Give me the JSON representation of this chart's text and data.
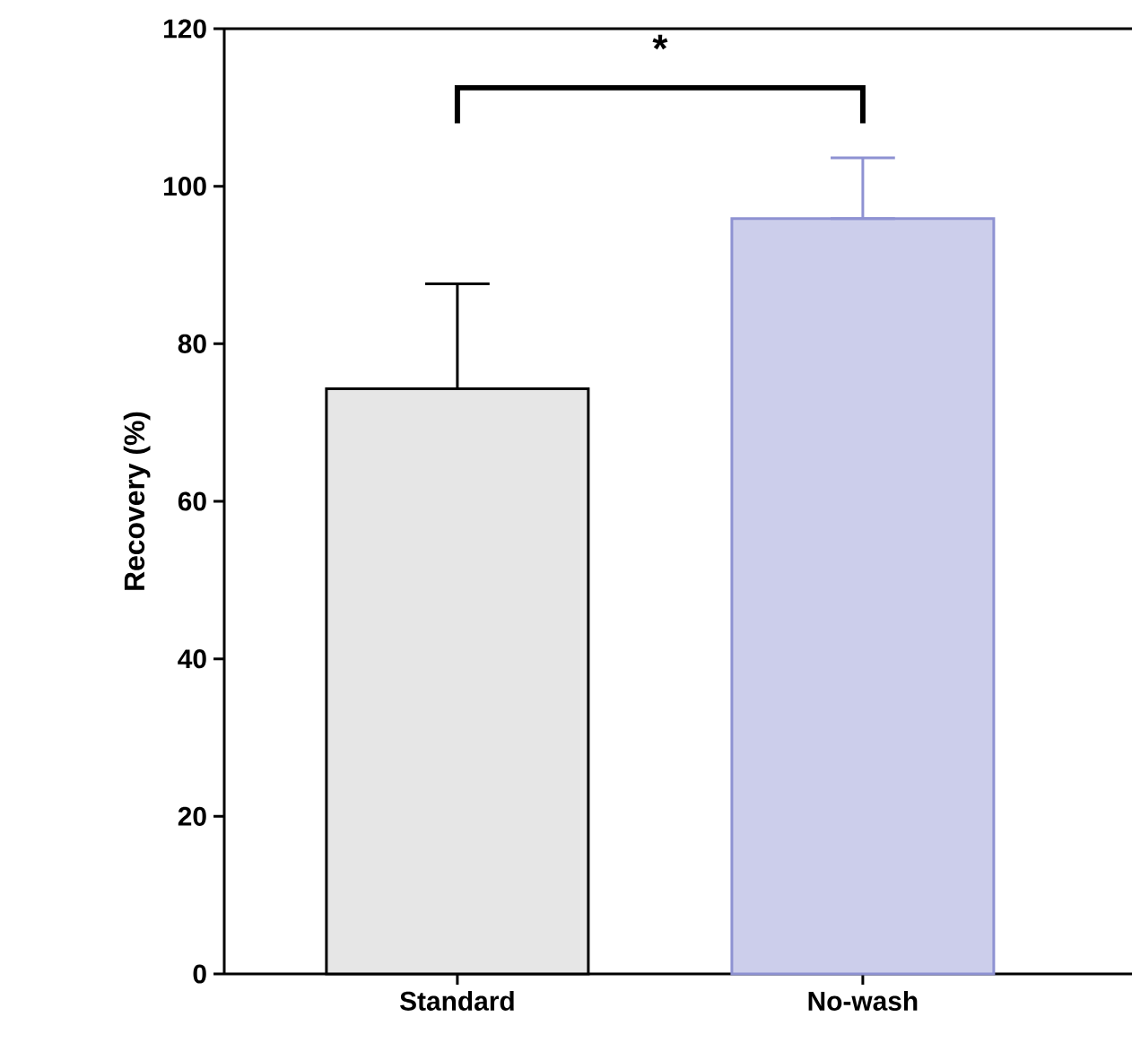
{
  "chart_data": {
    "type": "bar",
    "ylabel": "Recovery (%)",
    "categories": [
      "Standard",
      "No-wash"
    ],
    "values": [
      74.3,
      95.9
    ],
    "errors": [
      [
        74.3,
        87.6
      ],
      [
        95.9,
        103.6
      ]
    ],
    "colors": [
      "#e6e6e6",
      "#8e92d2"
    ],
    "ylim": [
      0,
      120
    ],
    "yticks": [
      0,
      20,
      40,
      60,
      80,
      100,
      120
    ],
    "annotations": [
      "*"
    ]
  }
}
